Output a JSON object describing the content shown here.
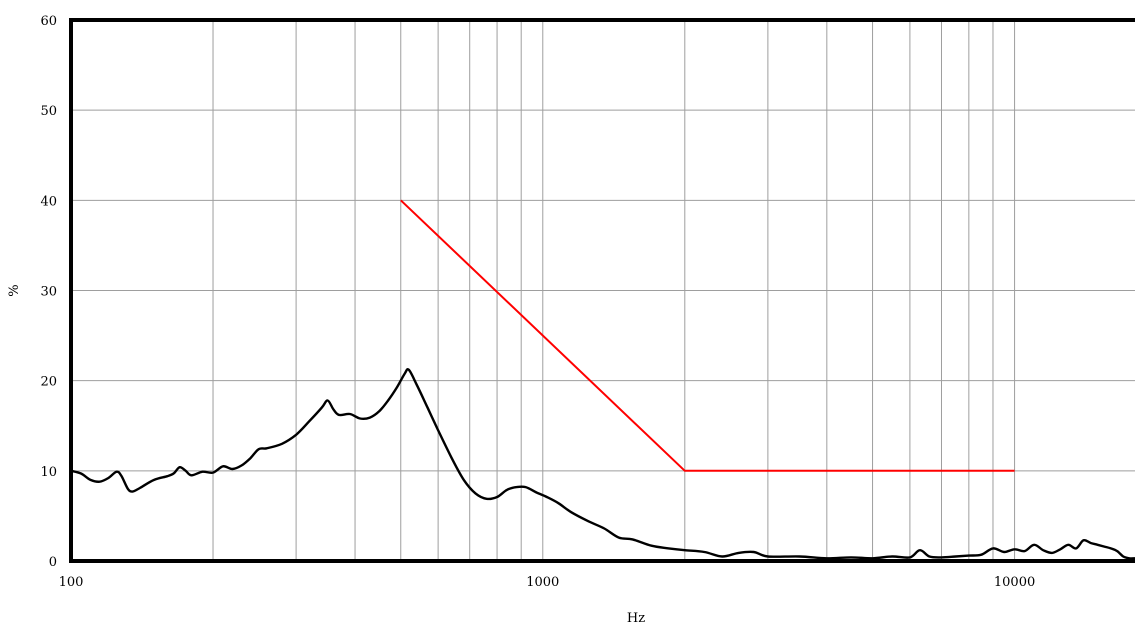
{
  "chart_data": {
    "type": "line",
    "title": "",
    "xlabel": "Hz",
    "ylabel": "%",
    "x_scale": "log",
    "xlim": [
      100,
      18000
    ],
    "ylim": [
      0,
      60
    ],
    "x_ticks": [
      {
        "value": 100,
        "label": "100"
      },
      {
        "value": 1000,
        "label": "1000"
      },
      {
        "value": 10000,
        "label": "10000"
      }
    ],
    "y_ticks": [
      {
        "value": 0,
        "label": "0"
      },
      {
        "value": 10,
        "label": "10"
      },
      {
        "value": 20,
        "label": "20"
      },
      {
        "value": 30,
        "label": "30"
      },
      {
        "value": 40,
        "label": "40"
      },
      {
        "value": 50,
        "label": "50"
      },
      {
        "value": 60,
        "label": "60"
      }
    ],
    "grid": true,
    "series": [
      {
        "color": "#000000",
        "points": [
          [
            100,
            10.0
          ],
          [
            105,
            9.7
          ],
          [
            110,
            9.0
          ],
          [
            115,
            8.8
          ],
          [
            120,
            9.2
          ],
          [
            125,
            9.9
          ],
          [
            128,
            9.4
          ],
          [
            132,
            8.0
          ],
          [
            135,
            7.7
          ],
          [
            140,
            8.1
          ],
          [
            150,
            9.0
          ],
          [
            160,
            9.4
          ],
          [
            165,
            9.7
          ],
          [
            170,
            10.4
          ],
          [
            175,
            10.0
          ],
          [
            180,
            9.5
          ],
          [
            190,
            9.9
          ],
          [
            200,
            9.8
          ],
          [
            210,
            10.5
          ],
          [
            220,
            10.2
          ],
          [
            230,
            10.6
          ],
          [
            240,
            11.4
          ],
          [
            250,
            12.4
          ],
          [
            260,
            12.5
          ],
          [
            280,
            13.0
          ],
          [
            300,
            14.0
          ],
          [
            320,
            15.5
          ],
          [
            340,
            17.0
          ],
          [
            350,
            17.8
          ],
          [
            360,
            16.8
          ],
          [
            370,
            16.2
          ],
          [
            390,
            16.3
          ],
          [
            410,
            15.8
          ],
          [
            430,
            15.9
          ],
          [
            450,
            16.6
          ],
          [
            470,
            17.8
          ],
          [
            490,
            19.2
          ],
          [
            510,
            20.8
          ],
          [
            520,
            21.2
          ],
          [
            540,
            19.6
          ],
          [
            570,
            17.0
          ],
          [
            600,
            14.5
          ],
          [
            640,
            11.5
          ],
          [
            680,
            9.0
          ],
          [
            720,
            7.5
          ],
          [
            760,
            6.9
          ],
          [
            800,
            7.1
          ],
          [
            840,
            7.9
          ],
          [
            880,
            8.2
          ],
          [
            920,
            8.2
          ],
          [
            970,
            7.6
          ],
          [
            1020,
            7.1
          ],
          [
            1080,
            6.4
          ],
          [
            1150,
            5.4
          ],
          [
            1250,
            4.4
          ],
          [
            1350,
            3.6
          ],
          [
            1450,
            2.6
          ],
          [
            1550,
            2.4
          ],
          [
            1700,
            1.7
          ],
          [
            1850,
            1.4
          ],
          [
            2000,
            1.2
          ],
          [
            2200,
            1.0
          ],
          [
            2400,
            0.5
          ],
          [
            2600,
            0.9
          ],
          [
            2800,
            1.0
          ],
          [
            3000,
            0.5
          ],
          [
            3500,
            0.5
          ],
          [
            4000,
            0.3
          ],
          [
            4500,
            0.4
          ],
          [
            5000,
            0.3
          ],
          [
            5500,
            0.5
          ],
          [
            6000,
            0.4
          ],
          [
            6300,
            1.2
          ],
          [
            6600,
            0.5
          ],
          [
            7000,
            0.4
          ],
          [
            7500,
            0.5
          ],
          [
            8000,
            0.6
          ],
          [
            8500,
            0.7
          ],
          [
            9000,
            1.4
          ],
          [
            9500,
            1.0
          ],
          [
            10000,
            1.3
          ],
          [
            10500,
            1.1
          ],
          [
            11000,
            1.8
          ],
          [
            11500,
            1.2
          ],
          [
            12000,
            0.9
          ],
          [
            12500,
            1.3
          ],
          [
            13000,
            1.8
          ],
          [
            13500,
            1.4
          ],
          [
            14000,
            2.3
          ],
          [
            14500,
            2.0
          ],
          [
            15000,
            1.8
          ],
          [
            15500,
            1.6
          ],
          [
            16000,
            1.4
          ],
          [
            16500,
            1.1
          ],
          [
            17000,
            0.5
          ],
          [
            17500,
            0.3
          ],
          [
            18000,
            0.3
          ]
        ]
      },
      {
        "color": "#ff0000",
        "points": [
          [
            500,
            40
          ],
          [
            2000,
            10
          ],
          [
            10000,
            10
          ]
        ]
      }
    ]
  }
}
